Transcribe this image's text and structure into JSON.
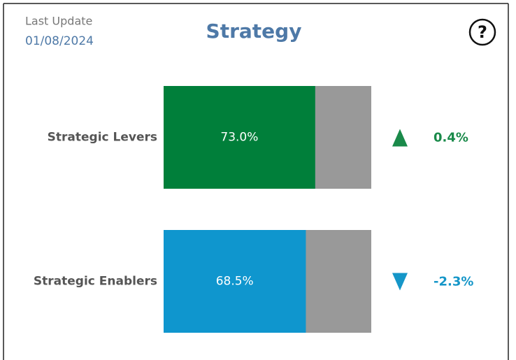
{
  "chart_data": {
    "type": "bar",
    "orientation": "horizontal",
    "title": "Strategy",
    "last_update_label": "Last Update",
    "last_update": "01/08/2024",
    "help_icon": "?",
    "categories": [
      "Strategic Levers",
      "Strategic Enablers"
    ],
    "values": [
      73.0,
      68.5
    ],
    "value_labels": [
      "73.0%",
      "68.5%"
    ],
    "colors": [
      "#007f3a",
      "#0f96ce"
    ],
    "remainder_color": "#999999",
    "xlim": [
      0,
      100
    ],
    "changes": [
      0.4,
      -2.3
    ],
    "change_labels": [
      "0.4%",
      "-2.3%"
    ],
    "change_colors": [
      "#1a8a4a",
      "#1596c8"
    ]
  }
}
